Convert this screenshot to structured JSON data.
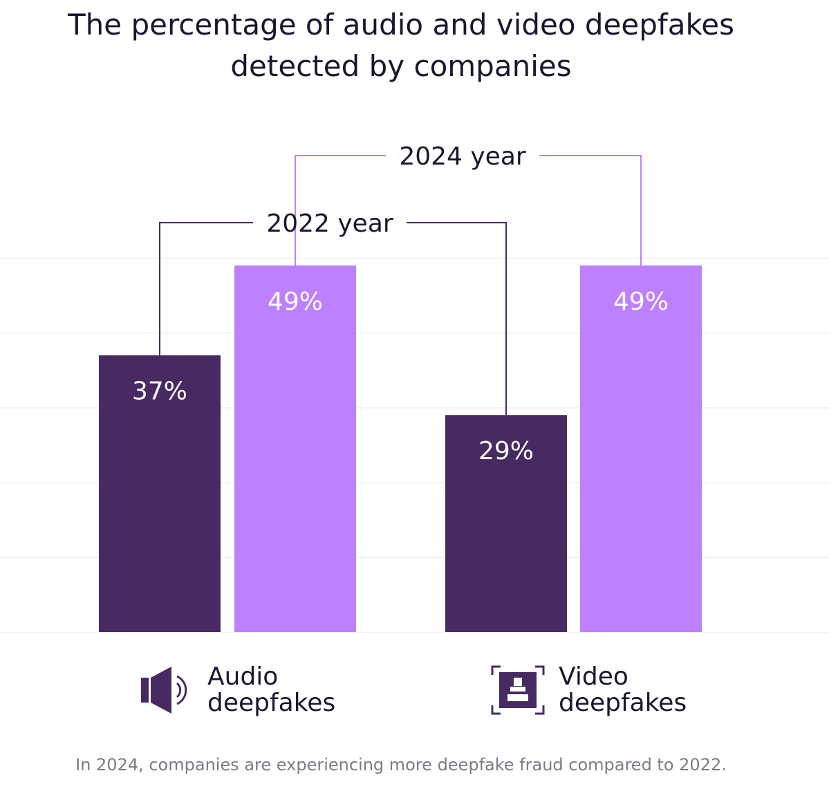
{
  "title_line1": "The percentage of audio and video deepfakes",
  "title_line2": "detected by companies",
  "footer": "In 2024, companies are experiencing more deepfake fraud compared to 2022.",
  "categories": [
    {
      "line1": "Audio",
      "line2": "deepfakes",
      "icon": "speaker-icon"
    },
    {
      "line1": "Video",
      "line2": "deepfakes",
      "icon": "video-frame-icon"
    }
  ],
  "chart_data": {
    "type": "bar",
    "title": "The percentage of audio and video deepfakes detected by companies",
    "categories": [
      "Audio deepfakes",
      "Video deepfakes"
    ],
    "series": [
      {
        "name": "2022 year",
        "values": [
          37,
          29
        ],
        "labels": [
          "37%",
          "29%"
        ],
        "color": "#482a63"
      },
      {
        "name": "2024 year",
        "values": [
          49,
          49
        ],
        "labels": [
          "49%",
          "49%"
        ],
        "color": "#bd80ff"
      }
    ],
    "ylim": [
      0,
      50
    ],
    "grid": true,
    "legend": "bracket callouts above bars"
  },
  "colors": {
    "dark": "#482a63",
    "light": "#bd80ff",
    "grid": "#efeff2",
    "text": "#1c1530",
    "muted": "#7c7a86"
  }
}
